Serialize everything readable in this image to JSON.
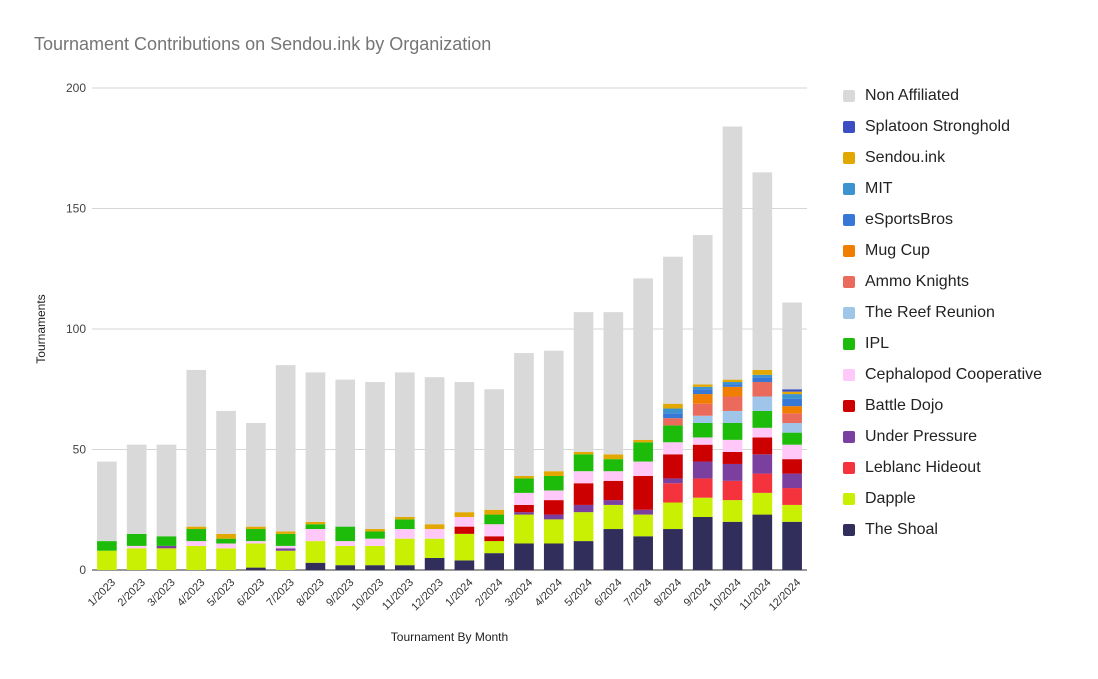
{
  "chart_data": {
    "type": "bar",
    "stacked": true,
    "title": "Tournament Contributions on Sendou.ink by Organization",
    "xlabel": "Tournament By Month",
    "ylabel": "Tournaments",
    "ylim": [
      0,
      200
    ],
    "yticks": [
      0,
      50,
      100,
      150,
      200
    ],
    "grid": true,
    "legend_position": "right",
    "categories": [
      "1/2023",
      "2/2023",
      "3/2023",
      "4/2023",
      "5/2023",
      "6/2023",
      "7/2023",
      "8/2023",
      "9/2023",
      "10/2023",
      "11/2023",
      "12/2023",
      "1/2024",
      "2/2024",
      "3/2024",
      "4/2024",
      "5/2024",
      "6/2024",
      "7/2024",
      "8/2024",
      "9/2024",
      "10/2024",
      "11/2024",
      "12/2024"
    ],
    "series": [
      {
        "name": "The Shoal",
        "color": "#312e5c",
        "values": [
          0,
          0,
          0,
          0,
          0,
          1,
          0,
          3,
          2,
          2,
          2,
          5,
          4,
          7,
          11,
          11,
          12,
          17,
          14,
          17,
          22,
          20,
          23,
          20
        ]
      },
      {
        "name": "Dapple",
        "color": "#c9f002",
        "values": [
          8,
          9,
          9,
          10,
          9,
          10,
          8,
          9,
          8,
          8,
          11,
          8,
          11,
          5,
          12,
          10,
          12,
          10,
          9,
          11,
          8,
          9,
          9,
          7
        ]
      },
      {
        "name": "Leblanc Hideout",
        "color": "#f5333d",
        "values": [
          0,
          0,
          0,
          0,
          0,
          0,
          0,
          0,
          0,
          0,
          0,
          0,
          0,
          0,
          0,
          0,
          0,
          0,
          0,
          8,
          8,
          8,
          8,
          7
        ]
      },
      {
        "name": "Under Pressure",
        "color": "#7b3fa0",
        "values": [
          0,
          0,
          1,
          0,
          0,
          0,
          1,
          0,
          0,
          0,
          0,
          0,
          0,
          0,
          1,
          2,
          3,
          2,
          2,
          2,
          7,
          7,
          8,
          6
        ]
      },
      {
        "name": "Battle Dojo",
        "color": "#cc0000",
        "values": [
          0,
          0,
          0,
          0,
          0,
          0,
          0,
          0,
          0,
          0,
          0,
          0,
          3,
          2,
          3,
          6,
          9,
          8,
          14,
          10,
          7,
          5,
          7,
          6
        ]
      },
      {
        "name": "Cephalopod Cooperative",
        "color": "#ffc8f8",
        "values": [
          0,
          1,
          0,
          2,
          2,
          1,
          1,
          5,
          2,
          3,
          4,
          4,
          4,
          5,
          5,
          4,
          5,
          4,
          6,
          5,
          3,
          5,
          4,
          6
        ]
      },
      {
        "name": "IPL",
        "color": "#1ebc0a",
        "values": [
          4,
          5,
          4,
          5,
          2,
          5,
          5,
          2,
          6,
          3,
          4,
          0,
          0,
          4,
          6,
          6,
          7,
          5,
          8,
          7,
          6,
          7,
          7,
          5
        ]
      },
      {
        "name": "The Reef Reunion",
        "color": "#9fc5e8",
        "values": [
          0,
          0,
          0,
          0,
          0,
          0,
          0,
          0,
          0,
          0,
          0,
          0,
          0,
          0,
          0,
          0,
          0,
          0,
          0,
          0,
          3,
          5,
          6,
          4
        ]
      },
      {
        "name": "Ammo Knights",
        "color": "#ea6b5b",
        "values": [
          0,
          0,
          0,
          0,
          0,
          0,
          0,
          0,
          0,
          0,
          0,
          0,
          0,
          0,
          0,
          0,
          0,
          0,
          0,
          3,
          5,
          6,
          6,
          4
        ]
      },
      {
        "name": "Mug Cup",
        "color": "#f07e00",
        "values": [
          0,
          0,
          0,
          0,
          0,
          0,
          0,
          0,
          0,
          0,
          0,
          0,
          0,
          0,
          0,
          0,
          0,
          0,
          0,
          0,
          4,
          4,
          0,
          3
        ]
      },
      {
        "name": "eSportsBros",
        "color": "#3778d6",
        "values": [
          0,
          0,
          0,
          0,
          0,
          0,
          0,
          0,
          0,
          0,
          0,
          0,
          0,
          0,
          0,
          0,
          0,
          0,
          0,
          2,
          2,
          1,
          2,
          3
        ]
      },
      {
        "name": "MIT",
        "color": "#3b93cf",
        "values": [
          0,
          0,
          0,
          0,
          0,
          0,
          0,
          0,
          0,
          0,
          0,
          0,
          0,
          0,
          0,
          0,
          0,
          0,
          0,
          2,
          1,
          1,
          1,
          2
        ]
      },
      {
        "name": "Sendou.ink",
        "color": "#e2a700",
        "values": [
          0,
          0,
          0,
          1,
          2,
          1,
          1,
          1,
          0,
          1,
          1,
          2,
          2,
          2,
          1,
          2,
          1,
          2,
          1,
          2,
          1,
          1,
          2,
          1
        ]
      },
      {
        "name": "Splatoon Stronghold",
        "color": "#3c4ec2",
        "values": [
          0,
          0,
          0,
          0,
          0,
          0,
          0,
          0,
          0,
          0,
          0,
          0,
          0,
          0,
          0,
          0,
          0,
          0,
          0,
          0,
          0,
          0,
          0,
          1
        ]
      },
      {
        "name": "Non Affiliated",
        "color": "#d9d9d9",
        "values": [
          33,
          37,
          38,
          65,
          51,
          43,
          69,
          62,
          61,
          61,
          60,
          61,
          54,
          50,
          51,
          50,
          58,
          59,
          67,
          61,
          62,
          105,
          82,
          36
        ]
      }
    ]
  }
}
